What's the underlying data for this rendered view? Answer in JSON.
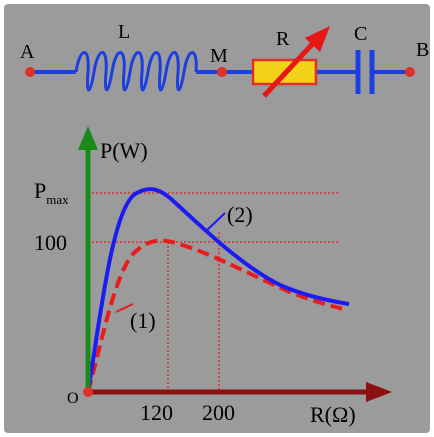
{
  "colors": {
    "background": "#9b9b9b",
    "frame": "#ffffff",
    "wire": "#1c3fe0",
    "node": "#e0302a",
    "resistor_fill": "#f3d21a",
    "resistor_stroke": "#e0302a",
    "arrow": "#e81616",
    "y_axis": "#1a8a1a",
    "x_axis": "#8b1010",
    "curve_2": "#1c1cf2",
    "curve_1": "#e81c1c",
    "guide": "#e81c1c"
  },
  "circuit": {
    "label_a": "A",
    "label_l": "L",
    "label_m": "M",
    "label_r": "R",
    "label_c": "C",
    "label_b": "B"
  },
  "graph": {
    "y_axis_label": "P(W)",
    "pmax_main": "P",
    "pmax_sub": "max",
    "y_tick_100": "100",
    "origin": "O",
    "x_tick_120": "120",
    "x_tick_200": "200",
    "x_axis_label": "R(Ω)",
    "curve_2_label": "(2)",
    "curve_1_label": "(1)"
  }
}
